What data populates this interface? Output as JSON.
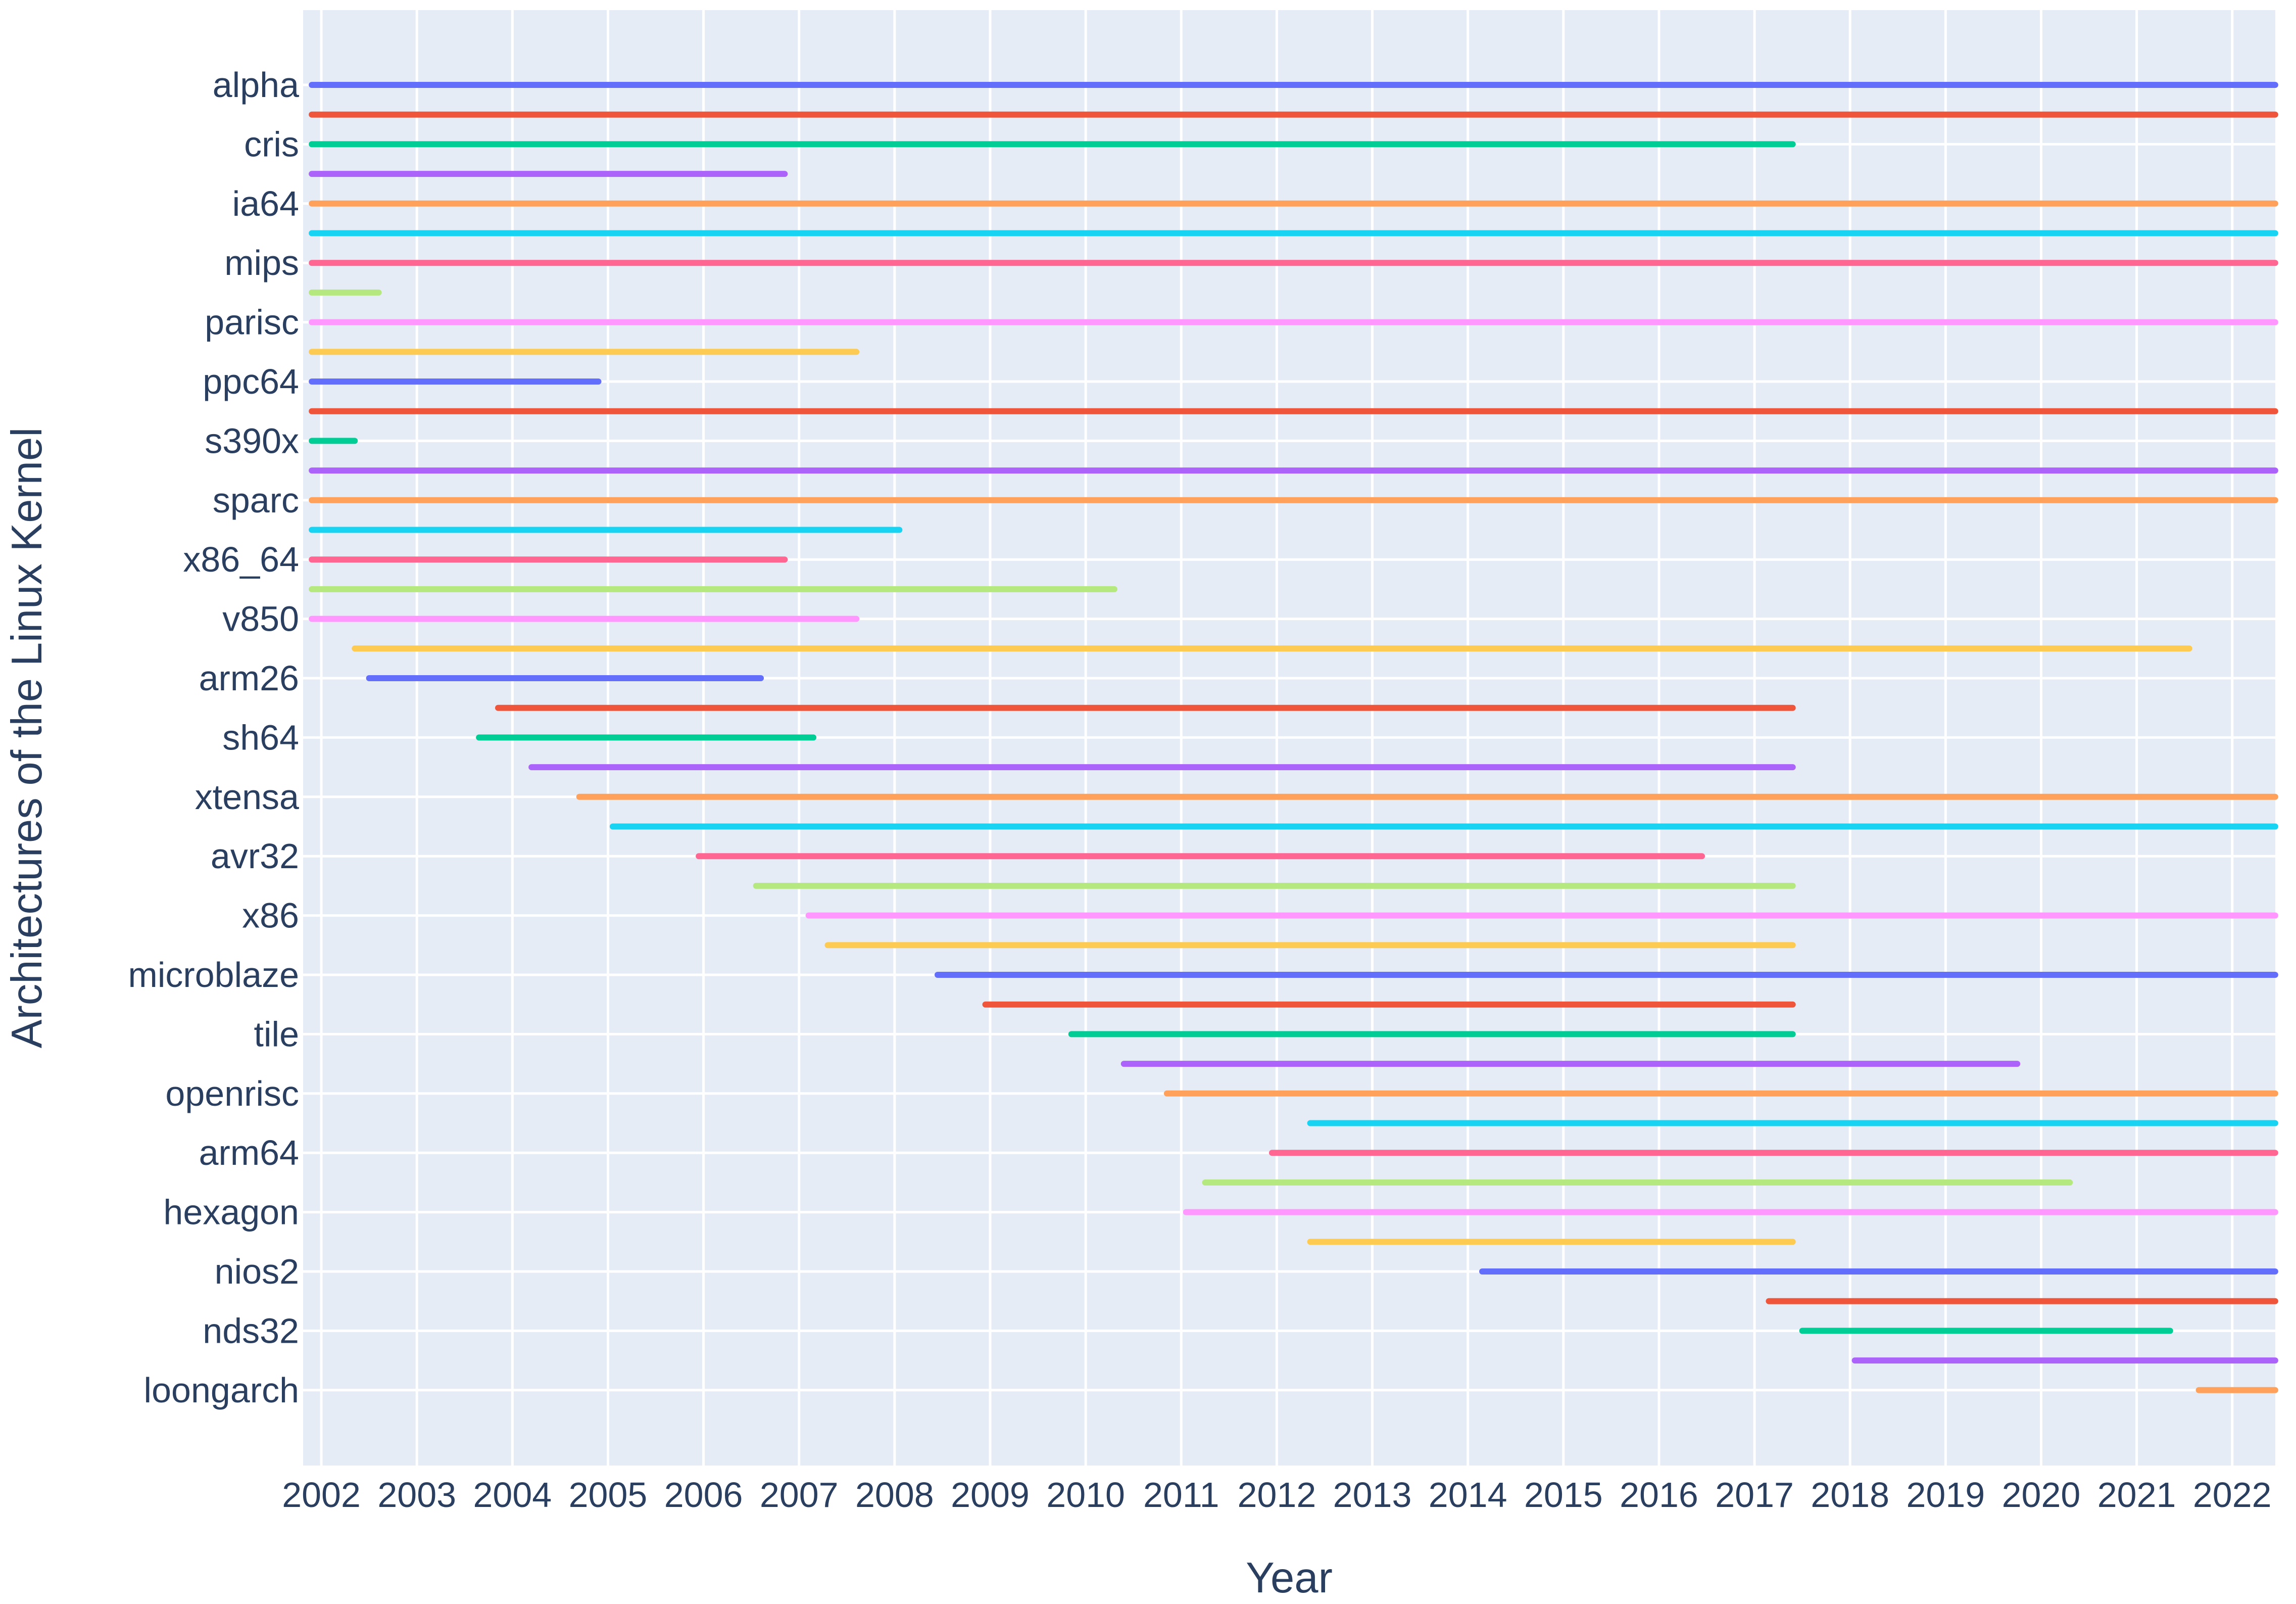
{
  "chart_data": {
    "type": "timeline",
    "xlabel": "Year",
    "ylabel": "Architectures of the Linux Kernel",
    "xlim": [
      "2001-12-01",
      "2022-06-01"
    ],
    "x_ticks": [
      "2002",
      "2003",
      "2004",
      "2005",
      "2006",
      "2007",
      "2008",
      "2009",
      "2010",
      "2011",
      "2012",
      "2013",
      "2014",
      "2015",
      "2016",
      "2017",
      "2018",
      "2019",
      "2020",
      "2021",
      "2022"
    ],
    "grid": true,
    "plot_bgcolor": "#e5ecf6",
    "colors": [
      "#636efa",
      "#ef553b",
      "#00cc96",
      "#ab63fa",
      "#ffa15a",
      "#19d3f3",
      "#ff6692",
      "#b6e880",
      "#ff97ff",
      "#fecb52"
    ],
    "series": [
      {
        "label": "alpha",
        "start": 2001.9,
        "end": 2022.45
      },
      {
        "label": "",
        "start": 2001.9,
        "end": 2022.45
      },
      {
        "label": "cris",
        "start": 2001.9,
        "end": 2017.4
      },
      {
        "label": "",
        "start": 2001.9,
        "end": 2006.85
      },
      {
        "label": "ia64",
        "start": 2001.9,
        "end": 2022.45
      },
      {
        "label": "",
        "start": 2001.9,
        "end": 2022.45
      },
      {
        "label": "mips",
        "start": 2001.9,
        "end": 2022.45
      },
      {
        "label": "",
        "start": 2001.9,
        "end": 2002.6
      },
      {
        "label": "parisc",
        "start": 2001.9,
        "end": 2022.45
      },
      {
        "label": "",
        "start": 2001.9,
        "end": 2007.6
      },
      {
        "label": "ppc64",
        "start": 2001.9,
        "end": 2004.9
      },
      {
        "label": "",
        "start": 2001.9,
        "end": 2022.45
      },
      {
        "label": "s390x",
        "start": 2001.9,
        "end": 2002.35
      },
      {
        "label": "",
        "start": 2001.9,
        "end": 2022.45
      },
      {
        "label": "sparc",
        "start": 2001.9,
        "end": 2022.45
      },
      {
        "label": "",
        "start": 2001.9,
        "end": 2008.05
      },
      {
        "label": "x86_64",
        "start": 2001.9,
        "end": 2006.85
      },
      {
        "label": "",
        "start": 2001.9,
        "end": 2010.3
      },
      {
        "label": "v850",
        "start": 2001.9,
        "end": 2007.6
      },
      {
        "label": "",
        "start": 2002.35,
        "end": 2021.55
      },
      {
        "label": "arm26",
        "start": 2002.5,
        "end": 2006.6
      },
      {
        "label": "",
        "start": 2003.85,
        "end": 2017.4
      },
      {
        "label": "sh64",
        "start": 2003.65,
        "end": 2007.15
      },
      {
        "label": "",
        "start": 2004.2,
        "end": 2017.4
      },
      {
        "label": "xtensa",
        "start": 2004.7,
        "end": 2022.45
      },
      {
        "label": "",
        "start": 2005.05,
        "end": 2022.45
      },
      {
        "label": "avr32",
        "start": 2005.95,
        "end": 2016.45
      },
      {
        "label": "",
        "start": 2006.55,
        "end": 2017.4
      },
      {
        "label": "x86",
        "start": 2007.1,
        "end": 2022.45
      },
      {
        "label": "",
        "start": 2007.3,
        "end": 2017.4
      },
      {
        "label": "microblaze",
        "start": 2008.45,
        "end": 2022.45
      },
      {
        "label": "",
        "start": 2008.95,
        "end": 2017.4
      },
      {
        "label": "tile",
        "start": 2009.85,
        "end": 2017.4
      },
      {
        "label": "",
        "start": 2010.4,
        "end": 2019.75
      },
      {
        "label": "openrisc",
        "start": 2010.85,
        "end": 2022.45
      },
      {
        "label": "",
        "start": 2012.35,
        "end": 2022.45
      },
      {
        "label": "arm64",
        "start": 2011.95,
        "end": 2022.45
      },
      {
        "label": "",
        "start": 2011.25,
        "end": 2020.3
      },
      {
        "label": "hexagon",
        "start": 2011.05,
        "end": 2022.45
      },
      {
        "label": "",
        "start": 2012.35,
        "end": 2017.4
      },
      {
        "label": "nios2",
        "start": 2014.15,
        "end": 2022.45
      },
      {
        "label": "",
        "start": 2017.15,
        "end": 2022.45
      },
      {
        "label": "nds32",
        "start": 2017.5,
        "end": 2021.35
      },
      {
        "label": "",
        "start": 2018.05,
        "end": 2022.45
      },
      {
        "label": "loongarch",
        "start": 2021.65,
        "end": 2022.45
      }
    ]
  }
}
